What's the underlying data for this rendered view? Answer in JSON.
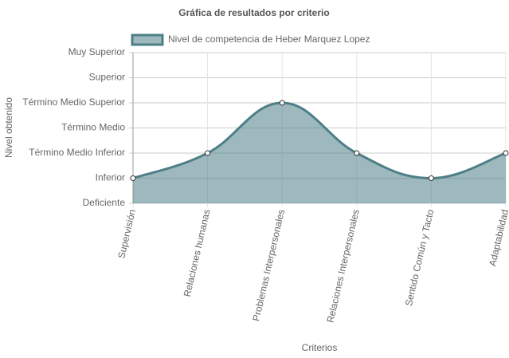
{
  "chart_data": {
    "type": "area",
    "title": "Gráfica de resultados por criterio",
    "xlabel": "Criterios",
    "ylabel": "Nivel obtenido",
    "categories": [
      "Supervisión",
      "Relaciones humanas",
      "Problemas Interpersonales",
      "Relaciones Interpersonales",
      "Sentido Común y Tacto",
      "Adaptabilidad"
    ],
    "series": [
      {
        "name": "Nivel de competencia de Heber Marquez Lopez",
        "color": "#4e7f87",
        "values": [
          1,
          2,
          4,
          2,
          1,
          2
        ]
      }
    ],
    "ylim": [
      0,
      6
    ],
    "yticks": [
      {
        "value": 0,
        "label": "Deficiente"
      },
      {
        "value": 1,
        "label": "Inferior"
      },
      {
        "value": 2,
        "label": "Término Medio Inferior"
      },
      {
        "value": 3,
        "label": "Término Medio"
      },
      {
        "value": 4,
        "label": "Término Medio Superior"
      },
      {
        "value": 5,
        "label": "Superior"
      },
      {
        "value": 6,
        "label": "Muy Superior"
      }
    ],
    "grid": true,
    "legend": "top"
  }
}
